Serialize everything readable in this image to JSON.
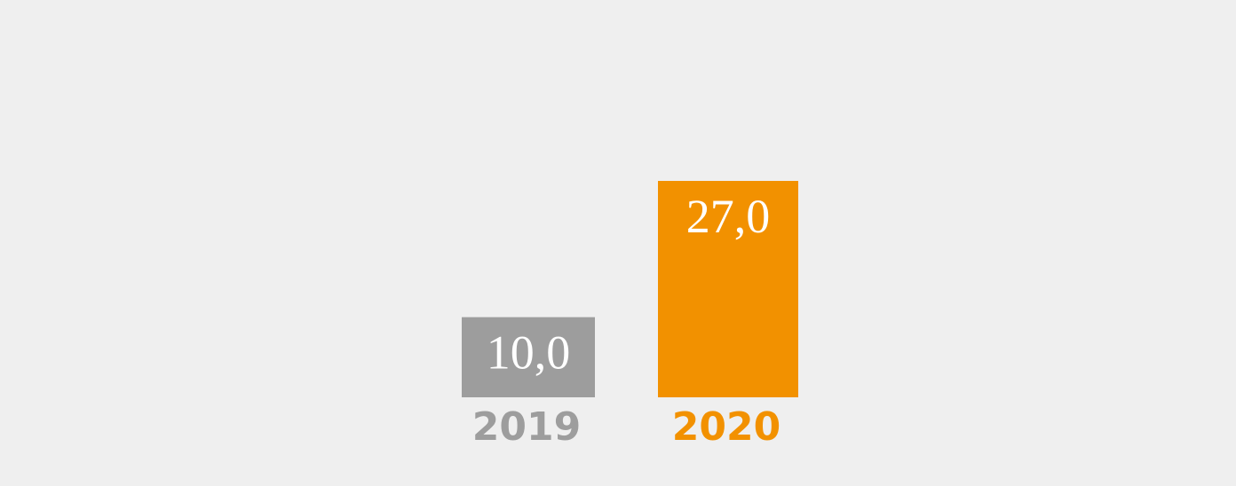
{
  "chart_data": {
    "type": "bar",
    "categories": [
      "2019",
      "2020"
    ],
    "values": [
      10.0,
      27.0
    ],
    "value_labels": [
      "10,0",
      "27,0"
    ],
    "colors": [
      "#9d9d9d",
      "#f29100"
    ]
  }
}
